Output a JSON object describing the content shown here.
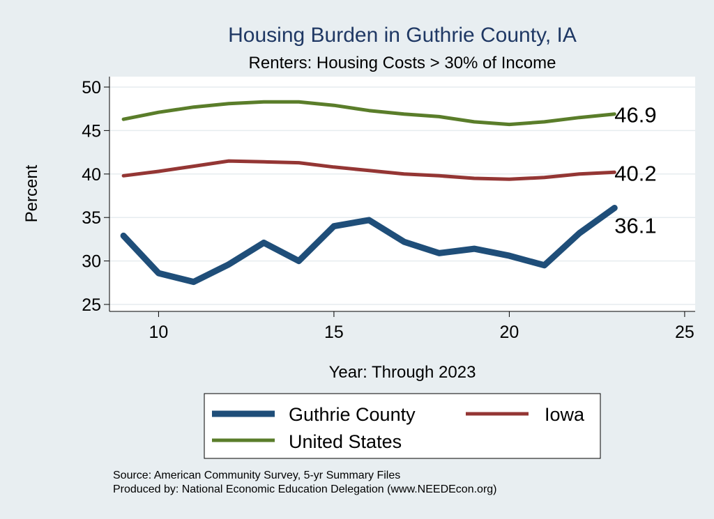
{
  "chart_data": {
    "type": "line",
    "title": "Housing Burden in Guthrie County, IA",
    "subtitle": "Renters: Housing Costs > 30% of Income",
    "xlabel": "Year: Through 2023",
    "ylabel": "Percent",
    "xlim": [
      8.6,
      25.3
    ],
    "ylim": [
      24.2,
      51.2
    ],
    "xticks": [
      "10",
      "15",
      "20",
      "25"
    ],
    "yticks": [
      "25",
      "30",
      "35",
      "40",
      "45",
      "50"
    ],
    "grid": true,
    "series": [
      {
        "name": "Guthrie County",
        "color": "#1f4e79",
        "x": [
          9,
          10,
          11,
          12,
          13,
          14,
          15,
          16,
          17,
          18,
          19,
          20,
          21,
          22,
          23
        ],
        "values": [
          32.9,
          28.6,
          27.6,
          29.6,
          32.1,
          30.0,
          34.0,
          34.7,
          32.2,
          30.9,
          31.4,
          30.6,
          29.5,
          33.2,
          36.1
        ],
        "end_label": "36.1"
      },
      {
        "name": "Iowa",
        "color": "#943634",
        "x": [
          9,
          10,
          11,
          12,
          13,
          14,
          15,
          16,
          17,
          18,
          19,
          20,
          21,
          22,
          23
        ],
        "values": [
          39.8,
          40.3,
          40.9,
          41.5,
          41.4,
          41.3,
          40.8,
          40.4,
          40.0,
          39.8,
          39.5,
          39.4,
          39.6,
          40.0,
          40.2
        ],
        "end_label": "40.2"
      },
      {
        "name": "United States",
        "color": "#5a7d2a",
        "x": [
          9,
          10,
          11,
          12,
          13,
          14,
          15,
          16,
          17,
          18,
          19,
          20,
          21,
          22,
          23
        ],
        "values": [
          46.3,
          47.1,
          47.7,
          48.1,
          48.3,
          48.3,
          47.9,
          47.3,
          46.9,
          46.6,
          46.0,
          45.7,
          46.0,
          46.5,
          46.9
        ],
        "end_label": "46.9"
      }
    ]
  },
  "legend": {
    "items": [
      "Guthrie County",
      "Iowa",
      "United States"
    ]
  },
  "footer": {
    "source": "Source: American Community Survey, 5-yr Summary Files",
    "produced": "Produced by: National Economic Education Delegation (www.NEEDEcon.org)"
  }
}
